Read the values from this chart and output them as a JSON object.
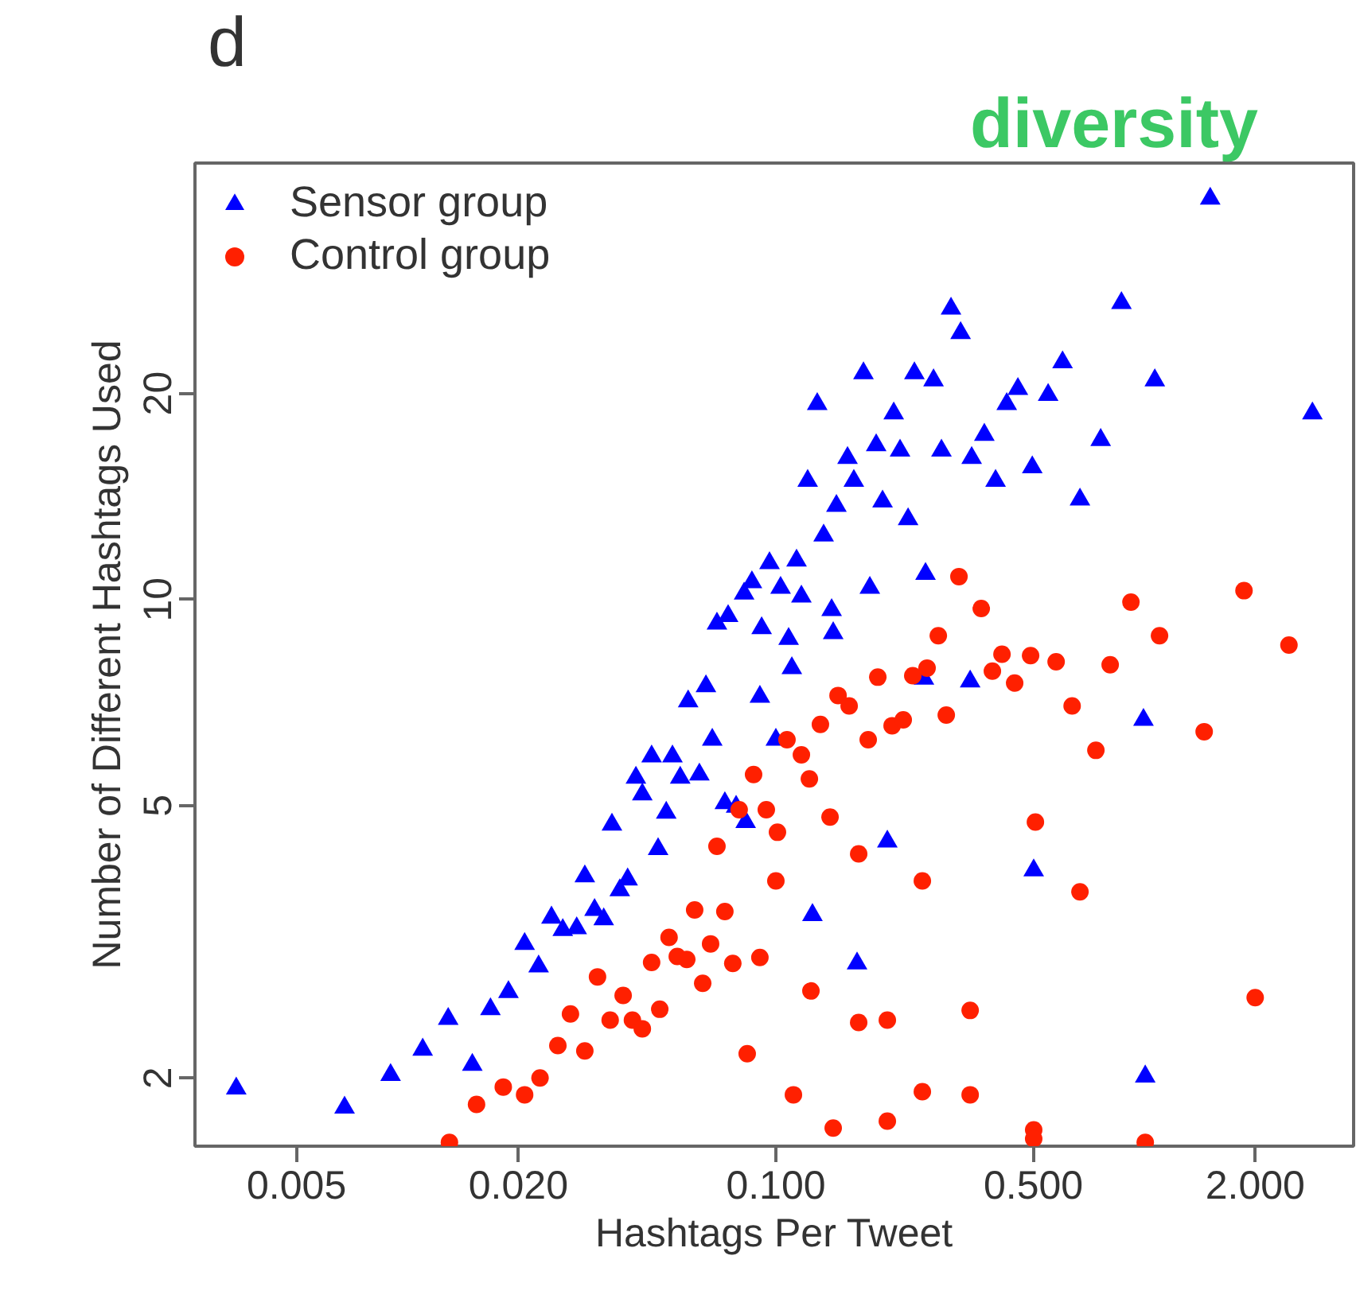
{
  "chart_data": {
    "type": "scatter",
    "title": "d",
    "xlabel": "Hashtags Per Tweet",
    "ylabel": "Number of Different Hashtags Used",
    "log": "xy",
    "xlim": [
      0.00265,
      3.7
    ],
    "ylim": [
      1.59,
      43.4
    ],
    "xticks": [
      {
        "value": 0.005,
        "label": "0.005"
      },
      {
        "value": 0.02,
        "label": "0.020"
      },
      {
        "value": 0.1,
        "label": "0.100"
      },
      {
        "value": 0.5,
        "label": "0.500"
      },
      {
        "value": 2,
        "label": "2.000"
      }
    ],
    "yticks": [
      2,
      5,
      10,
      20
    ],
    "legend": "top left",
    "annotations": [
      "diversity"
    ],
    "series": [
      {
        "name": "Sensor group",
        "color": "#0000ff",
        "marker": "triangle",
        "x": [
          0.00343,
          0.00675,
          0.009,
          0.011,
          0.0129,
          0.015,
          0.0168,
          0.0188,
          0.0208,
          0.0227,
          0.0246,
          0.0264,
          0.0288,
          0.0303,
          0.0322,
          0.0341,
          0.0377,
          0.0396,
          0.0359,
          0.0417,
          0.0434,
          0.046,
          0.0524,
          0.055,
          0.0479,
          0.0504,
          0.062,
          0.0672,
          0.0727,
          0.078,
          0.0828,
          0.1,
          0.0905,
          0.1105,
          0.0578,
          0.0646,
          0.1257,
          0.1295,
          0.122,
          0.146,
          0.1348,
          0.0961,
          0.1138,
          0.0861,
          0.103,
          0.082,
          0.1173,
          0.0742,
          0.0692,
          0.0915,
          0.1083,
          0.1431,
          0.1417,
          1.51,
          0.2988,
          0.3173,
          0.867,
          0.6,
          1.068,
          2.86,
          0.1729,
          0.2377,
          0.2679,
          0.2089,
          0.4539,
          0.4233,
          0.5483,
          0.368,
          0.1872,
          0.2173,
          0.2815,
          0.34,
          0.1565,
          0.7615,
          0.1628,
          0.3948,
          0.4966,
          0.1948,
          0.2285,
          0.669,
          0.1799,
          0.2548,
          0.2523,
          0.3368,
          0.995,
          0.2007,
          0.501,
          0.1661,
          1.006
        ],
        "values": [
          1.93,
          1.81,
          2.02,
          2.2,
          2.44,
          2.09,
          2.52,
          2.67,
          3.14,
          2.91,
          3.43,
          3.29,
          3.31,
          3.94,
          3.52,
          3.41,
          3.76,
          3.9,
          4.69,
          5.49,
          5.19,
          5.9,
          5.9,
          5.49,
          4.32,
          4.88,
          5.55,
          6.24,
          5.04,
          4.98,
          4.73,
          6.24,
          7.21,
          7.94,
          7.1,
          7.47,
          3.46,
          19.3,
          14.9,
          13.7,
          12.4,
          11.3,
          11.4,
          10.6,
          10.4,
          10.2,
          10.1,
          9.46,
          9.22,
          9.08,
          8.76,
          8.93,
          9.65,
          38.5,
          26.6,
          24.5,
          27.1,
          22.2,
          20.9,
          18.7,
          21.4,
          21.4,
          20.9,
          18.7,
          20.3,
          19.3,
          19.9,
          17.4,
          16.8,
          16.5,
          16.5,
          16.1,
          16.1,
          17.1,
          14.9,
          14.9,
          15.6,
          13.9,
          13.1,
          14.0,
          10.4,
          10.9,
          7.66,
          7.59,
          6.67,
          4.43,
          4.02,
          2.94,
          2.01
        ]
      },
      {
        "name": "Control group",
        "color": "#ff2000",
        "marker": "circle",
        "x": [
          0.013,
          0.0154,
          0.0182,
          0.0208,
          0.0229,
          0.0256,
          0.0303,
          0.0277,
          0.0355,
          0.0328,
          0.0385,
          0.0408,
          0.0434,
          0.0484,
          0.046,
          0.0513,
          0.054,
          0.0573,
          0.0633,
          0.0665,
          0.0764,
          0.0905,
          0.0602,
          0.0727,
          0.0692,
          0.0836,
          0.1,
          0.101,
          0.0942,
          0.0795,
          0.087,
          0.1116,
          0.1245,
          0.1403,
          0.1431,
          0.1233,
          0.1173,
          0.1072,
          0.1321,
          0.1475,
          0.1581,
          0.1781,
          0.2068,
          0.2217,
          0.2901,
          0.637,
          0.739,
          1.454,
          0.1891,
          0.2353,
          0.2573,
          0.387,
          0.4448,
          0.4914,
          0.5764,
          0.808,
          0.314,
          0.361,
          0.92,
          1.865,
          1.1,
          2.47,
          0.276,
          0.4109,
          0.1678,
          0.2498,
          0.5064,
          0.669,
          0.1678,
          0.2007,
          0.3368,
          2.0,
          0.2498,
          0.3368,
          0.2007,
          0.501,
          0.501,
          1.006
        ],
        "values": [
          1.61,
          1.83,
          1.94,
          1.89,
          2.0,
          2.23,
          2.19,
          2.48,
          2.43,
          2.81,
          2.64,
          2.43,
          2.36,
          2.52,
          2.95,
          3.21,
          3.01,
          2.98,
          2.75,
          3.14,
          2.94,
          3.0,
          3.52,
          3.5,
          4.36,
          2.17,
          3.88,
          4.57,
          4.93,
          4.93,
          5.55,
          1.89,
          2.68,
          4.81,
          1.69,
          5.47,
          5.93,
          6.24,
          6.57,
          7.24,
          6.99,
          6.24,
          6.54,
          6.67,
          6.78,
          6.99,
          6.02,
          6.41,
          7.7,
          7.74,
          7.94,
          7.86,
          7.55,
          8.28,
          8.11,
          8.03,
          10.8,
          9.7,
          9.91,
          10.3,
          8.85,
          8.58,
          8.85,
          8.32,
          4.25,
          3.88,
          4.73,
          3.74,
          2.41,
          2.43,
          2.51,
          2.62,
          1.91,
          1.89,
          1.73,
          1.68,
          1.63,
          1.61
        ]
      }
    ]
  }
}
